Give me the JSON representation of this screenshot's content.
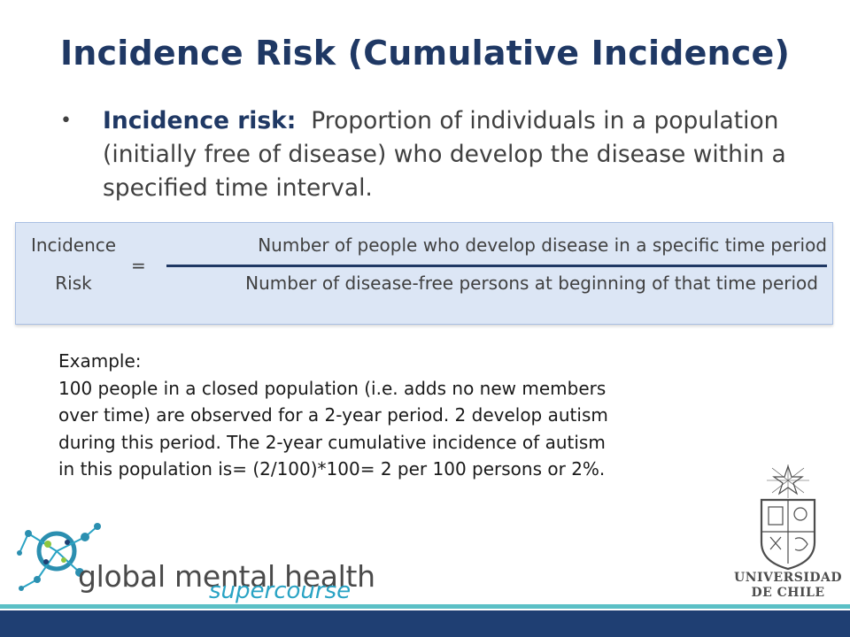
{
  "slide": {
    "title": "Incidence Risk (Cumulative Incidence)",
    "bullet": {
      "symbol": "•",
      "term": "Incidence risk:",
      "definition": "Proportion of individuals in a population (initially free of disease) who develop the disease within a specified time interval."
    },
    "formula": {
      "left_top": "Incidence",
      "left_bottom": "Risk",
      "equals": "=",
      "numerator": "Number of people who develop disease in a specific time period",
      "denominator": "Number of disease-free persons at beginning of that time period"
    },
    "example": {
      "heading": "Example:",
      "lines": [
        "100 people in a closed population (i.e. adds no new members",
        "over time) are observed for a 2-year period. 2 develop autism",
        "during this period. The 2-year cumulative incidence of autism",
        "in this population is= (2/100)*100= 2 per 100 persons or 2%."
      ]
    }
  },
  "footer": {
    "left_logo": {
      "line1": "global mental health",
      "line2": "supercourse",
      "icon": "network-nodes-icon"
    },
    "right_logo": {
      "line1": "UNIVERSIDAD",
      "line2": "DE CHILE",
      "icon": "university-crest-icon"
    }
  },
  "colors": {
    "title": "#1f3864",
    "body_text": "#404040",
    "formula_bg": "#dce6f5",
    "bar_light": "#5bc0c6",
    "bar_dark": "#1f3f73",
    "accent_cyan": "#29a3c4"
  }
}
